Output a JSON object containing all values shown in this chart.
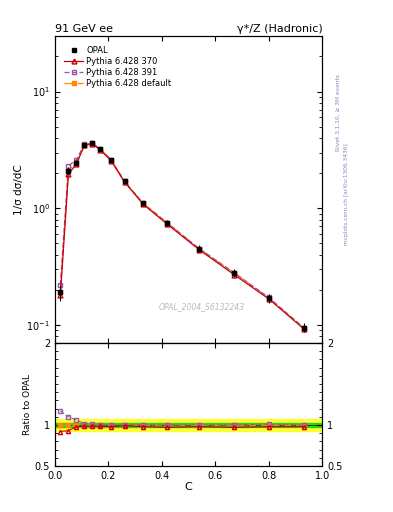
{
  "title_left": "91 GeV ee",
  "title_right": "γ*/Z (Hadronic)",
  "ylabel_main": "1/σ dσ/dC",
  "ylabel_ratio": "Ratio to OPAL",
  "xlabel": "C",
  "watermark": "OPAL_2004_S6132243",
  "right_label": "mcplots.cern.ch [arXiv:1306.3436]",
  "right_label2": "Rivet 3.1.10, ≥ 3M events",
  "ylim_main": [
    0.07,
    30
  ],
  "ylim_ratio": [
    0.5,
    2.0
  ],
  "xlim": [
    0.0,
    1.0
  ],
  "C_centers": [
    0.02,
    0.05,
    0.08,
    0.11,
    0.14,
    0.17,
    0.21,
    0.26,
    0.33,
    0.42,
    0.54,
    0.67,
    0.8,
    0.93
  ],
  "opal_y": [
    0.19,
    2.1,
    2.45,
    3.5,
    3.6,
    3.2,
    2.6,
    1.7,
    1.1,
    0.75,
    0.45,
    0.28,
    0.17,
    0.095
  ],
  "opal_yerr": [
    0.03,
    0.15,
    0.12,
    0.15,
    0.15,
    0.13,
    0.1,
    0.08,
    0.05,
    0.04,
    0.03,
    0.02,
    0.015,
    0.008
  ],
  "py370_y": [
    0.18,
    1.95,
    2.4,
    3.45,
    3.55,
    3.15,
    2.55,
    1.68,
    1.08,
    0.73,
    0.44,
    0.27,
    0.167,
    0.093
  ],
  "py391_y": [
    0.22,
    2.3,
    2.6,
    3.55,
    3.6,
    3.2,
    2.6,
    1.7,
    1.1,
    0.75,
    0.45,
    0.28,
    0.172,
    0.095
  ],
  "pydef_y": [
    0.19,
    2.1,
    2.45,
    3.5,
    3.6,
    3.2,
    2.6,
    1.7,
    1.1,
    0.75,
    0.45,
    0.28,
    0.17,
    0.094
  ],
  "ratio_py370": [
    0.92,
    0.93,
    0.98,
    0.985,
    0.985,
    0.985,
    0.98,
    0.99,
    0.98,
    0.97,
    0.98,
    0.97,
    0.98,
    0.98
  ],
  "ratio_py391": [
    1.17,
    1.1,
    1.06,
    1.015,
    1.01,
    1.0,
    1.0,
    1.0,
    1.0,
    1.0,
    1.0,
    1.0,
    1.01,
    1.0
  ],
  "ratio_pydef": [
    1.0,
    1.0,
    1.0,
    1.0,
    1.0,
    1.0,
    1.0,
    1.0,
    1.0,
    1.0,
    1.0,
    1.0,
    1.0,
    1.0
  ],
  "band_green_ylo": 0.97,
  "band_green_yhi": 1.03,
  "band_yellow_ylo": 0.93,
  "band_yellow_yhi": 1.07,
  "color_opal": "#000000",
  "color_py370": "#cc0000",
  "color_py391": "#9955aa",
  "color_pydef": "#ff8800",
  "bg_color": "#ffffff"
}
